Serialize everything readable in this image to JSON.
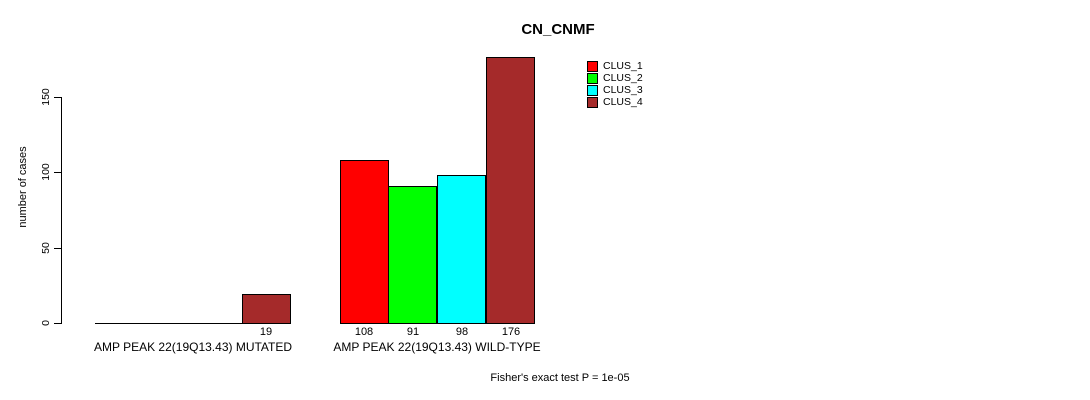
{
  "title": "CN_CNMF",
  "footer": "Fisher's exact test P = 1e-05",
  "axis_color": "#000000",
  "background_color": "#ffffff",
  "chart_data": {
    "type": "bar",
    "title": "CN_CNMF",
    "xlabel": "",
    "ylabel": "number of cases",
    "categories": [
      "AMP PEAK 22(19Q13.43) MUTATED",
      "AMP PEAK 22(19Q13.43) WILD-TYPE"
    ],
    "series": [
      {
        "name": "CLUS_1",
        "color": "#ff0000",
        "values": [
          0,
          108
        ]
      },
      {
        "name": "CLUS_2",
        "color": "#00ff00",
        "values": [
          0,
          91
        ]
      },
      {
        "name": "CLUS_3",
        "color": "#00ffff",
        "values": [
          0,
          98
        ]
      },
      {
        "name": "CLUS_4",
        "color": "#a52a2a",
        "values": [
          19,
          176
        ]
      }
    ],
    "bar_value_labels": [
      {
        "category_index": 0,
        "labels": [
          "",
          "",
          "",
          "19"
        ]
      },
      {
        "category_index": 1,
        "labels": [
          "108",
          "91",
          "98",
          "176"
        ]
      }
    ],
    "yticks": [
      0,
      50,
      100,
      150
    ],
    "ylim": [
      0,
      180
    ],
    "grid": false,
    "legend_position": "top-right-inside",
    "legend_entries": [
      "CLUS_1",
      "CLUS_2",
      "CLUS_3",
      "CLUS_4"
    ],
    "annotation": "Fisher's exact test P = 1e-05"
  }
}
